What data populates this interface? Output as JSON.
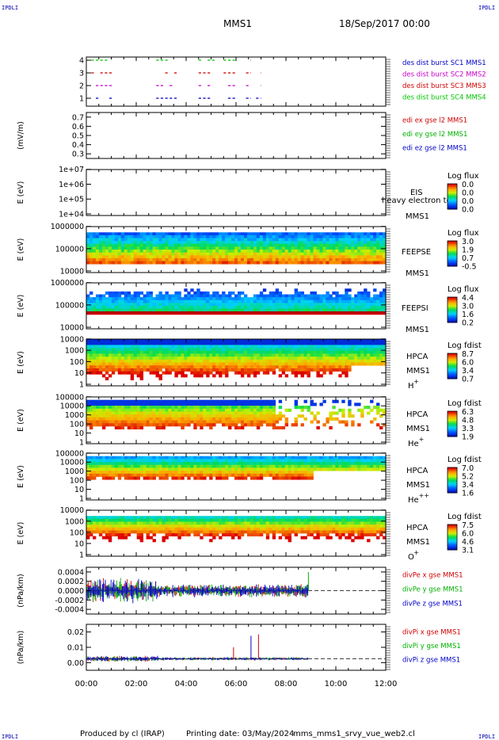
{
  "header": {
    "corner_left_top": "IPDLI",
    "corner_right_top": "IPDLI",
    "corner_left_bottom": "IPDLI",
    "corner_right_bottom": "IPDLI",
    "spacecraft": "MMS1",
    "date": "18/Sep/2017 00:00"
  },
  "footer": {
    "produced": "Produced by cl (IRAP)",
    "printing": "Printing date: 03/May/2024",
    "script": "mms_mms1_srvy_vue_web2.cl"
  },
  "chart_data": {
    "type": "line",
    "x_ticks": [
      "00:00",
      "02:00",
      "04:00",
      "06:00",
      "08:00",
      "10:00",
      "12:00"
    ],
    "x_range_hours": [
      0,
      12
    ],
    "panels": [
      {
        "id": "burst",
        "type": "scatter",
        "y_ticks": [
          "1",
          "2",
          "3",
          "4"
        ],
        "ylim": [
          0.5,
          4.5
        ],
        "legend": [
          {
            "label": "des dist burst SC1 MMS1",
            "color": "#0000c8"
          },
          {
            "label": "des dist burst SC2 MMS2",
            "color": "#c800c8"
          },
          {
            "label": "des dist burst SC3 MMS3",
            "color": "#d00000"
          },
          {
            "label": "des dist burst SC4 MMS4",
            "color": "#00c800"
          }
        ],
        "intervals_hours": [
          [
            0.2,
            1.1
          ],
          [
            2.8,
            3.7
          ],
          [
            4.5,
            5.2
          ],
          [
            5.5,
            6.0
          ],
          [
            6.4,
            6.6
          ],
          [
            6.8,
            7.0
          ]
        ]
      },
      {
        "id": "edi",
        "type": "line",
        "ylabel": "(mV/m)",
        "y_ticks": [
          "0.3",
          "0.4",
          "0.5",
          "0.6",
          "0.7"
        ],
        "ylim": [
          0.3,
          0.7
        ],
        "legend": [
          {
            "label": "edi ex gse l2 MMS1",
            "color": "#d00000"
          },
          {
            "label": "edi ey gse l2 MMS1",
            "color": "#00b000"
          },
          {
            "label": "edi ez gse l2 MMS1",
            "color": "#0000c8"
          }
        ]
      },
      {
        "id": "eis",
        "type": "heatmap",
        "ylabel": "E (eV)",
        "y_ticks": [
          "1e+04",
          "1e+05",
          "1e+06",
          "1e+07"
        ],
        "labels": [
          "EIS",
          "heavy electron to",
          "MMS1"
        ],
        "cbar_title": "Log flux",
        "cbar_ticks": [
          "0.0",
          "0.0",
          "0.0",
          "0.0"
        ]
      },
      {
        "id": "feeps_e",
        "type": "heatmap",
        "ylabel": "E (eV)",
        "y_ticks": [
          "10000",
          "100000",
          "1000000"
        ],
        "labels": [
          "FEEPSE",
          "MMS1"
        ],
        "cbar_title": "Log flux",
        "cbar_ticks": [
          "3.0",
          "1.9",
          "0.7",
          "-0.5"
        ]
      },
      {
        "id": "feeps_i",
        "type": "heatmap",
        "ylabel": "E (eV)",
        "y_ticks": [
          "10000",
          "100000",
          "1000000"
        ],
        "labels": [
          "FEEPSI",
          "MMS1"
        ],
        "cbar_title": "Log flux",
        "cbar_ticks": [
          "4.4",
          "3.0",
          "1.6",
          "0.2"
        ]
      },
      {
        "id": "hpca_h",
        "type": "heatmap",
        "ylabel": "E (eV)",
        "y_ticks": [
          "1",
          "10",
          "100",
          "1000",
          "10000"
        ],
        "labels": [
          "HPCA",
          "MMS1",
          "H",
          "+"
        ],
        "cbar_title": "Log fdist",
        "cbar_ticks": [
          "8.7",
          "6.0",
          "3.4",
          "0.7"
        ]
      },
      {
        "id": "hpca_he",
        "type": "heatmap",
        "ylabel": "E (eV)",
        "y_ticks": [
          "1",
          "10",
          "100",
          "1000",
          "10000",
          "100000"
        ],
        "labels": [
          "HPCA",
          "MMS1",
          "He",
          "+"
        ],
        "cbar_title": "Log fdist",
        "cbar_ticks": [
          "6.3",
          "4.8",
          "3.3",
          "1.9"
        ]
      },
      {
        "id": "hpca_he2",
        "type": "heatmap",
        "ylabel": "E (eV)",
        "y_ticks": [
          "1",
          "10",
          "100",
          "1000",
          "10000",
          "100000"
        ],
        "labels": [
          "HPCA",
          "MMS1",
          "He",
          "++"
        ],
        "cbar_title": "Log fdist",
        "cbar_ticks": [
          "7.0",
          "5.2",
          "3.4",
          "1.6"
        ]
      },
      {
        "id": "hpca_o",
        "type": "heatmap",
        "ylabel": "E (eV)",
        "y_ticks": [
          "1",
          "10",
          "100",
          "1000",
          "10000"
        ],
        "labels": [
          "HPCA",
          "MMS1",
          "O",
          "+"
        ],
        "cbar_title": "Log fdist",
        "cbar_ticks": [
          "7.5",
          "6.0",
          "4.6",
          "3.1"
        ]
      },
      {
        "id": "divpe",
        "type": "line",
        "ylabel": "(nPa/km)",
        "y_ticks": [
          "-0.0004",
          "-0.0002",
          "0.0000",
          "0.0002",
          "0.0004"
        ],
        "ylim": [
          -0.0005,
          0.0005
        ],
        "legend": [
          {
            "label": "divPe x gse MMS1",
            "color": "#d00000"
          },
          {
            "label": "divPe y gse MMS1",
            "color": "#00b000"
          },
          {
            "label": "divPe z gse MMS1",
            "color": "#0000c8"
          }
        ],
        "data_end_hours": 8.9
      },
      {
        "id": "divpi",
        "type": "line",
        "ylabel": "(nPa/km)",
        "y_ticks": [
          "0.00",
          "0.01",
          "0.02"
        ],
        "ylim": [
          -0.008,
          0.024
        ],
        "legend": [
          {
            "label": "divPi x gse MMS1",
            "color": "#d00000"
          },
          {
            "label": "divPi y gse MMS1",
            "color": "#00b000"
          },
          {
            "label": "divPi z gse MMS1",
            "color": "#0000c8"
          }
        ],
        "data_end_hours": 8.9,
        "spikes": [
          {
            "x": 6.6,
            "y": 0.016,
            "color": "#0000c8"
          },
          {
            "x": 6.9,
            "y": 0.017,
            "color": "#d00000"
          },
          {
            "x": 5.9,
            "y": 0.008,
            "color": "#d00000"
          }
        ]
      }
    ]
  }
}
